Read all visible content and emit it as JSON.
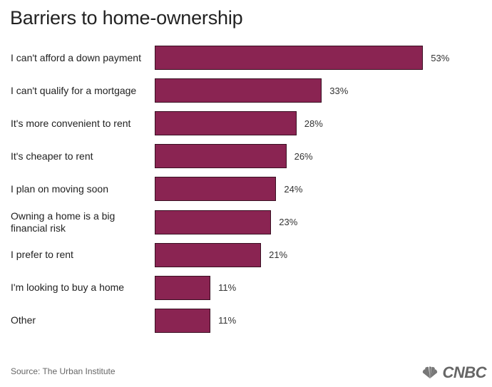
{
  "chart_data": {
    "type": "bar",
    "orientation": "horizontal",
    "title": "Barriers to home-ownership",
    "categories": [
      "I can't afford a down payment",
      "I can't qualify for a mortgage",
      "It's more convenient to rent",
      "It's cheaper to rent",
      "I plan on moving soon",
      "Owning a home is a big financial risk",
      "I prefer to rent",
      "I'm looking to buy a home",
      "Other"
    ],
    "values": [
      53,
      33,
      28,
      26,
      24,
      23,
      21,
      11,
      11
    ],
    "value_labels": [
      "53%",
      "33%",
      "28%",
      "26%",
      "24%",
      "23%",
      "21%",
      "11%",
      "11%"
    ],
    "unit": "%",
    "xlim": [
      0,
      100
    ],
    "grid": false,
    "bar_color": "#8a2452"
  },
  "source": "Source: The Urban Institute",
  "logo": {
    "text": "CNBC",
    "icon": "nbc-peacock-icon"
  }
}
